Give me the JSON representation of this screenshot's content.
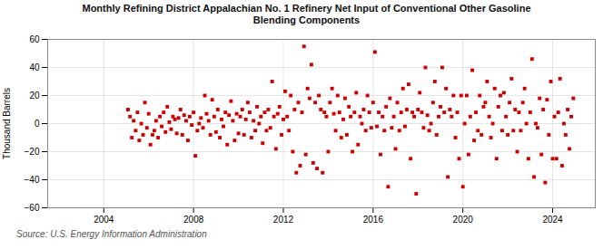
{
  "chart_data": {
    "type": "scatter",
    "title": "Monthly Refining District Appalachian No. 1 Refinery Net Input of Conventional Other Gasoline\nBlending Components",
    "ylabel": "Thousand Barrels",
    "source": "Source: U.S. Energy Information Administration",
    "color": "#cc0000",
    "marker": "square",
    "grid": true,
    "xlim": [
      2001.5,
      2025.9
    ],
    "xticks": [
      2004,
      2008,
      2012,
      2016,
      2020,
      2024
    ],
    "ylim": [
      -60,
      60
    ],
    "yticks": [
      -60,
      -40,
      -20,
      0,
      20,
      40,
      60
    ],
    "x": [
      2005.08,
      2005.17,
      2005.25,
      2005.33,
      2005.42,
      2005.5,
      2005.58,
      2005.67,
      2005.75,
      2005.83,
      2005.92,
      2006.0,
      2006.08,
      2006.17,
      2006.25,
      2006.33,
      2006.42,
      2006.5,
      2006.58,
      2006.67,
      2006.75,
      2006.83,
      2006.92,
      2007.0,
      2007.08,
      2007.17,
      2007.25,
      2007.33,
      2007.42,
      2007.5,
      2007.58,
      2007.67,
      2007.75,
      2007.83,
      2007.92,
      2008.0,
      2008.08,
      2008.17,
      2008.25,
      2008.33,
      2008.42,
      2008.5,
      2008.58,
      2008.67,
      2008.75,
      2008.83,
      2008.92,
      2009.0,
      2009.08,
      2009.17,
      2009.25,
      2009.33,
      2009.42,
      2009.5,
      2009.58,
      2009.67,
      2009.75,
      2009.83,
      2009.92,
      2010.0,
      2010.08,
      2010.17,
      2010.25,
      2010.33,
      2010.42,
      2010.5,
      2010.58,
      2010.67,
      2010.75,
      2010.83,
      2010.92,
      2011.0,
      2011.08,
      2011.17,
      2011.25,
      2011.33,
      2011.42,
      2011.5,
      2011.58,
      2011.67,
      2011.75,
      2011.83,
      2011.92,
      2012.0,
      2012.08,
      2012.17,
      2012.25,
      2012.33,
      2012.42,
      2012.5,
      2012.58,
      2012.67,
      2012.75,
      2012.83,
      2012.92,
      2013.0,
      2013.08,
      2013.17,
      2013.25,
      2013.33,
      2013.42,
      2013.5,
      2013.58,
      2013.67,
      2013.75,
      2013.83,
      2013.92,
      2014.0,
      2014.08,
      2014.17,
      2014.25,
      2014.33,
      2014.42,
      2014.5,
      2014.58,
      2014.67,
      2014.75,
      2014.83,
      2014.92,
      2015.0,
      2015.08,
      2015.17,
      2015.25,
      2015.33,
      2015.42,
      2015.5,
      2015.58,
      2015.67,
      2015.75,
      2015.83,
      2015.92,
      2016.0,
      2016.08,
      2016.17,
      2016.25,
      2016.33,
      2016.42,
      2016.5,
      2016.58,
      2016.67,
      2016.75,
      2016.83,
      2016.92,
      2017.0,
      2017.08,
      2017.17,
      2017.25,
      2017.33,
      2017.42,
      2017.5,
      2017.58,
      2017.67,
      2017.75,
      2017.83,
      2017.92,
      2018.0,
      2018.08,
      2018.17,
      2018.25,
      2018.33,
      2018.42,
      2018.5,
      2018.58,
      2018.67,
      2018.75,
      2018.83,
      2018.92,
      2019.0,
      2019.08,
      2019.17,
      2019.25,
      2019.33,
      2019.42,
      2019.5,
      2019.58,
      2019.67,
      2019.75,
      2019.83,
      2019.92,
      2020.0,
      2020.08,
      2020.17,
      2020.25,
      2020.33,
      2020.42,
      2020.5,
      2020.58,
      2020.67,
      2020.75,
      2020.83,
      2020.92,
      2021.0,
      2021.08,
      2021.17,
      2021.25,
      2021.33,
      2021.42,
      2021.5,
      2021.58,
      2021.67,
      2021.75,
      2021.83,
      2021.92,
      2022.0,
      2022.08,
      2022.17,
      2022.25,
      2022.33,
      2022.42,
      2022.5,
      2022.58,
      2022.67,
      2022.75,
      2022.83,
      2022.92,
      2023.0,
      2023.08,
      2023.17,
      2023.25,
      2023.33,
      2023.42,
      2023.5,
      2023.58,
      2023.67,
      2023.75,
      2023.83,
      2023.92,
      2024.0,
      2024.08,
      2024.17,
      2024.25,
      2024.33,
      2024.42,
      2024.5,
      2024.58,
      2024.67,
      2024.75,
      2024.83,
      2024.92
    ],
    "values": [
      10,
      5,
      -10,
      2,
      -5,
      8,
      -12,
      0,
      -8,
      15,
      -3,
      7,
      -15,
      -8,
      -5,
      2,
      -10,
      5,
      -2,
      8,
      -6,
      12,
      1,
      -4,
      5,
      3,
      -7,
      4,
      10,
      -8,
      6,
      2,
      -12,
      5,
      -1,
      8,
      -23,
      -5,
      0,
      4,
      -3,
      20,
      7,
      2,
      -8,
      17,
      5,
      -6,
      10,
      -10,
      3,
      -2,
      8,
      -15,
      6,
      16,
      2,
      -12,
      7,
      -7,
      5,
      10,
      -8,
      3,
      15,
      8,
      -10,
      2,
      -5,
      12,
      0,
      5,
      -14,
      8,
      -5,
      10,
      -3,
      30,
      5,
      -18,
      7,
      12,
      -8,
      3,
      23,
      5,
      -5,
      20,
      -20,
      10,
      -35,
      15,
      -30,
      8,
      55,
      -22,
      25,
      18,
      42,
      -28,
      15,
      -32,
      20,
      10,
      -35,
      8,
      5,
      -20,
      15,
      25,
      7,
      -5,
      20,
      8,
      -10,
      3,
      18,
      -8,
      12,
      5,
      -20,
      8,
      22,
      -15,
      5,
      0,
      10,
      -5,
      20,
      8,
      -3,
      15,
      51,
      -2,
      8,
      -22,
      5,
      -5,
      12,
      -45,
      18,
      -3,
      5,
      -18,
      15,
      -5,
      8,
      25,
      -2,
      10,
      28,
      -25,
      8,
      5,
      -50,
      10,
      22,
      8,
      -3,
      40,
      6,
      -5,
      0,
      15,
      30,
      -8,
      5,
      12,
      40,
      8,
      25,
      -38,
      10,
      5,
      20,
      -10,
      8,
      -25,
      20,
      -45,
      0,
      20,
      -22,
      5,
      38,
      -12,
      8,
      -5,
      20,
      -8,
      12,
      15,
      30,
      5,
      -10,
      0,
      25,
      -25,
      12,
      20,
      -5,
      22,
      5,
      -8,
      15,
      32,
      -5,
      10,
      -20,
      8,
      -5,
      15,
      25,
      0,
      -25,
      8,
      46,
      -38,
      0,
      -3,
      18,
      -22,
      10,
      -42,
      17,
      -8,
      30,
      -25,
      5,
      -25,
      8,
      32,
      -30,
      0,
      -8,
      10,
      -18,
      5,
      18
    ]
  }
}
